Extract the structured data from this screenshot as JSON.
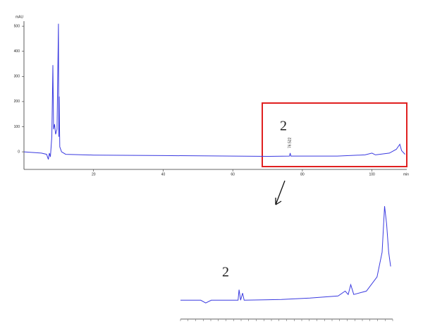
{
  "chart_data": [
    {
      "type": "line",
      "y_label": "mAU",
      "x_label": "min",
      "annotation": "2",
      "peak_label": "76.522",
      "x": [
        0,
        5,
        6.5,
        7,
        7.3,
        7.6,
        8.0,
        8.3,
        8.5,
        8.8,
        9.1,
        9.5,
        9.9,
        10.0,
        10.1,
        10.3,
        10.8,
        12,
        20,
        40,
        60,
        70,
        76.3,
        76.5,
        76.7,
        90,
        98,
        100,
        101,
        105,
        107,
        108,
        108.5,
        109.5
      ],
      "series": [
        {
          "color": "#3a3ae0",
          "values": [
            0,
            -5,
            -10,
            -30,
            -5,
            -20,
            60,
            345,
            90,
            110,
            70,
            90,
            510,
            60,
            220,
            20,
            0,
            -10,
            -13,
            -15,
            -17,
            -18,
            -17,
            -5,
            -17,
            -17,
            -12,
            -5,
            -12,
            -5,
            10,
            30,
            5,
            -10
          ]
        }
      ],
      "xlim": [
        0,
        110
      ],
      "ylim": [
        -70,
        520
      ],
      "xticks": [
        20,
        40,
        60,
        80,
        100
      ],
      "yticks": [
        0,
        100,
        200,
        300,
        400,
        500
      ]
    },
    {
      "type": "line",
      "annotation": "2",
      "x": [
        68,
        72.0,
        73.0,
        74.1,
        79.4,
        79.6,
        79.9,
        80.3,
        80.6,
        88,
        93.6,
        99.2,
        100.6,
        101.2,
        101.7,
        102.3,
        104.8,
        106.9,
        107.9,
        108.4,
        108.8,
        109.2,
        109.6
      ],
      "series": [
        {
          "color": "#3a3ae0",
          "values": [
            5.5,
            5.5,
            4,
            5.5,
            5.5,
            11.4,
            5.5,
            9.5,
            5.5,
            5.9,
            6.7,
            7.9,
            10.6,
            8.7,
            14.2,
            8.7,
            10.6,
            18.5,
            32.3,
            58,
            48,
            32.3,
            24.4
          ]
        }
      ],
      "xlim": [
        68,
        110
      ],
      "ylim": [
        -5,
        60
      ]
    }
  ]
}
